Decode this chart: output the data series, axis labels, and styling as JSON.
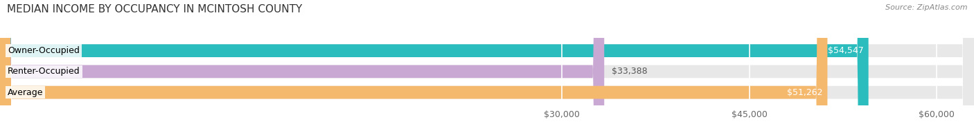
{
  "title": "MEDIAN INCOME BY OCCUPANCY IN MCINTOSH COUNTY",
  "source": "Source: ZipAtlas.com",
  "categories": [
    "Owner-Occupied",
    "Renter-Occupied",
    "Average"
  ],
  "values": [
    54547,
    33388,
    51262
  ],
  "bar_colors": [
    "#2bbcbd",
    "#c9a8d4",
    "#f5b96e"
  ],
  "bar_labels": [
    "$54,547",
    "$33,388",
    "$51,262"
  ],
  "xlim_min": -15000,
  "xlim_max": 63000,
  "xticks": [
    30000,
    45000,
    60000
  ],
  "xtick_labels": [
    "$30,000",
    "$45,000",
    "$60,000"
  ],
  "background_color": "#ffffff",
  "bar_bg_color": "#e8e8e8",
  "title_fontsize": 11,
  "source_fontsize": 8,
  "tick_fontsize": 9,
  "bar_label_fontsize": 9,
  "category_fontsize": 9,
  "bar_height": 0.62,
  "grid_color": "#dddddd"
}
